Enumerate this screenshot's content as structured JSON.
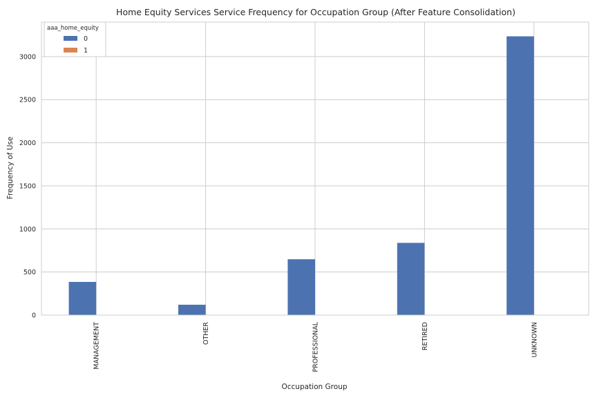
{
  "chart_data": {
    "type": "bar",
    "title": "Home Equity Services Service Frequency for Occupation Group (After Feature Consolidation)",
    "xlabel": "Occupation Group",
    "ylabel": "Frequency of Use",
    "categories": [
      "MANAGEMENT",
      "OTHER",
      "PROFESSIONAL",
      "RETIRED",
      "UNKNOWN"
    ],
    "series": [
      {
        "name": "0",
        "values": [
          385,
          120,
          648,
          838,
          3235
        ],
        "color": "#4c72b0"
      },
      {
        "name": "1",
        "values": [
          0,
          0,
          0,
          0,
          0
        ],
        "color": "#dd8452"
      }
    ],
    "ylim": [
      0,
      3400
    ],
    "yticks": [
      0,
      500,
      1000,
      1500,
      2000,
      2500,
      3000
    ],
    "grid": true,
    "legend": {
      "title": "aaa_home_equity",
      "placement": "top-left"
    }
  }
}
